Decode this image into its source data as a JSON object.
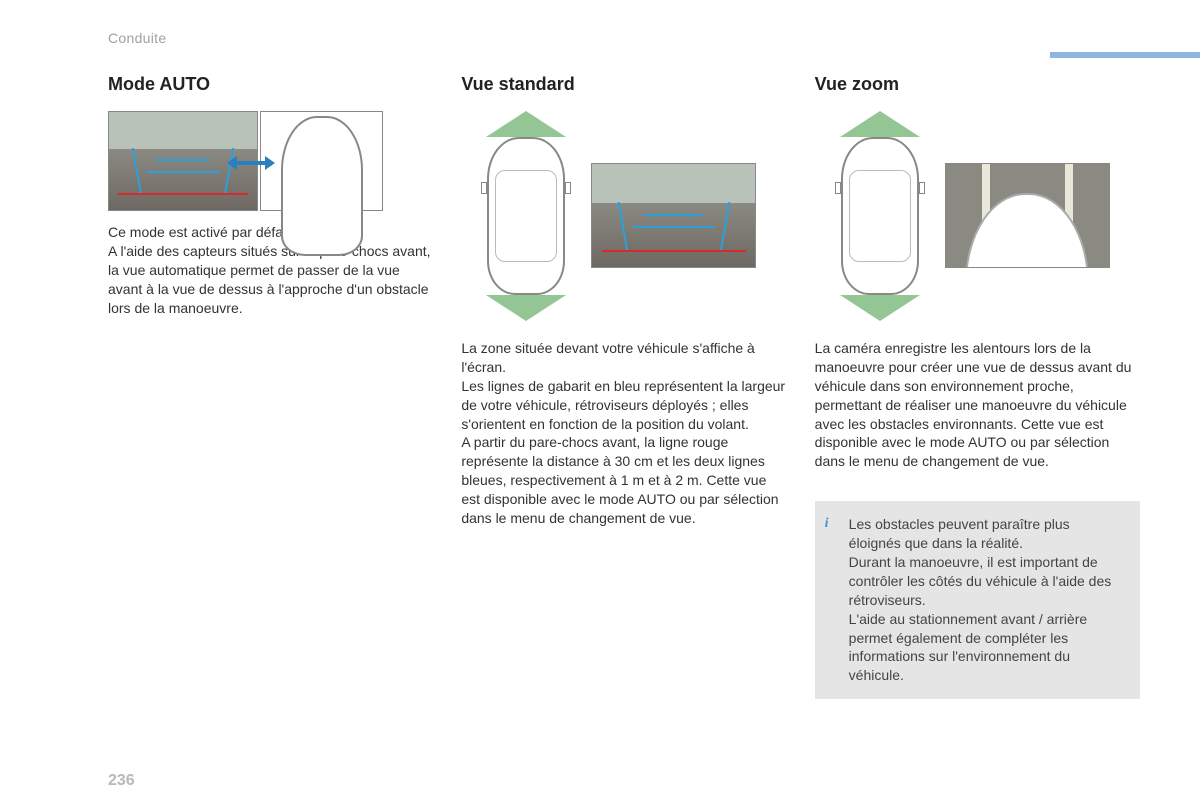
{
  "section_label": "Conduite",
  "page_number": "236",
  "accent_bar_color": "#8fb5e0",
  "columns": {
    "auto": {
      "heading": "Mode AUTO",
      "text": "Ce mode est activé par défaut.\nA l'aide des capteurs situés sur le pare-chocs avant, la vue automatique permet de passer de la vue avant à la vue de dessus à l'approche d'un obstacle lors de la manoeuvre."
    },
    "standard": {
      "heading": "Vue standard",
      "text": "La zone située devant votre véhicule s'affiche à l'écran.\nLes lignes de gabarit en bleu représentent la largeur de votre véhicule, rétroviseurs déployés ; elles s'orientent en fonction de la position du volant.\nA partir du pare-chocs avant, la ligne rouge représente la distance à 30 cm et les deux lignes bleues, respectivement à 1 m et à 2 m. Cette vue est disponible avec le mode AUTO ou par sélection dans le menu de changement de vue."
    },
    "zoom": {
      "heading": "Vue zoom",
      "text": "La caméra enregistre les alentours lors de la manoeuvre pour créer une vue de dessus avant du véhicule dans son environnement proche, permettant de réaliser une manoeuvre du véhicule avec les obstacles environnants. Cette vue est disponible avec le mode AUTO ou par sélection dans le menu de changement de vue."
    }
  },
  "info_box": {
    "icon_color": "#4a90d9",
    "bg_color": "#e5e5e5",
    "text": "Les obstacles peuvent paraître plus éloignés que dans la réalité.\nDurant la manoeuvre, il est important de contrôler les côtés du véhicule à l'aide des rétroviseurs.\nL'aide au stationnement avant / arrière permet également de compléter les informations sur l'environnement du véhicule."
  },
  "colors": {
    "guide_blue": "#2aa0e0",
    "guide_red": "#d82a2a",
    "arrow_blue": "#2a7fbf",
    "cone_green": "rgba(60,150,60,0.55)",
    "text": "#333333",
    "heading": "#222222",
    "section_label": "#a0a0a0",
    "page_num": "#b8b8b8"
  }
}
